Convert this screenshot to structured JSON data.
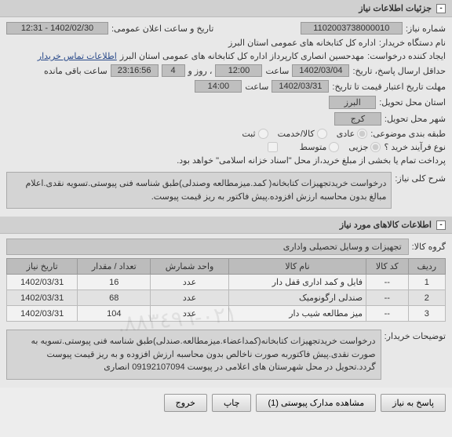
{
  "panel1": {
    "title": "جزئیات اطلاعات نیاز",
    "need_no_label": "شماره نیاز:",
    "need_no": "1102003738000010",
    "announce_label": "تاریخ و ساعت اعلان عمومی:",
    "announce": "1402/02/30 - 12:31",
    "buyer_label": "نام دستگاه خریدار:",
    "buyer": "اداره کل کتابخانه های عمومی استان البرز",
    "creator_label": "ایجاد کننده درخواست:",
    "creator": "مهدحسین انصاری کارپرداز اداره کل کتابخانه های عمومی استان البرز",
    "contact_link": "اطلاعات تماس خریدار",
    "deadline_label": "حداقل ارسال پاسخ، تاریخ:",
    "deadline_date": "1402/03/04",
    "deadline_time_label": "ساعت",
    "deadline_time": "12:00",
    "days_label": "، روز و",
    "days": "4",
    "time_remain": "23:16:56",
    "remain_label": "ساعت باقی مانده",
    "validity_label": "مهلت تاریخ اعتبار قیمت تا تاریخ:",
    "validity_date": "1402/03/31",
    "validity_time_label": "ساعت",
    "validity_time": "14:00",
    "province_label": "استان محل تحویل:",
    "province": "البرز",
    "city_label": "شهر محل تحویل:",
    "city": "کرج",
    "category_label": "طبقه بندی موضوعی:",
    "cat_items": [
      {
        "label": "عادی",
        "checked": true
      },
      {
        "label": "کالا/خدمت",
        "checked": false
      },
      {
        "label": "ثبت",
        "checked": false
      }
    ],
    "process_label": "نوع فرآیند خرید ؟",
    "proc_items": [
      {
        "label": "جزیی",
        "checked": true
      },
      {
        "label": "متوسط",
        "checked": false
      }
    ],
    "pay_note": "پرداخت تمام یا بخشی از مبلغ خرید،از محل \"اسناد خزانه اسلامی\" خواهد بود.",
    "desc_label": "شرح کلی نیاز:",
    "desc": "درخواست خریدتجهیزات کتابخانه( کمد.میزمطالعه وصندلی)طبق شناسه فنی پیوستی.تسویه نقدی.اعلام مبالغ بدون محاسبه ارزش افزوده.پیش فاکتور به ریز قیمت پیوست."
  },
  "panel2": {
    "title": "اطلاعات کالاهای مورد نیاز",
    "group_label": "گروه کالا:",
    "group": "تجهیزات و وسایل تحصیلی واداری",
    "columns": [
      "ردیف",
      "کد کالا",
      "نام کالا",
      "واحد شمارش",
      "تعداد / مقدار",
      "تاریخ نیاز"
    ],
    "rows": [
      [
        "1",
        "--",
        "فایل و کمد اداری قفل دار",
        "عدد",
        "16",
        "1402/03/31"
      ],
      [
        "2",
        "--",
        "صندلی ارگونومیک",
        "عدد",
        "68",
        "1402/03/31"
      ],
      [
        "3",
        "--",
        "میز مطالعه شیب دار",
        "عدد",
        "104",
        "1402/03/31"
      ]
    ],
    "buyer_note_label": "توضیحات خریدار:",
    "buyer_note": "درخواست خریدتجهیزات کتابخانه(کمداعضاء.میزمطالعه.صندلی)طبق شناسه فنی پیوستی.تسویه به صورت نقدی.پیش فاکتوربه صورت ناخالص بدون محاسبه ارزش افزوده و به ریز قیمت پیوست گردد.تحویل در محل شهرستان های اعلامی در پیوست 09192107094 انصاری"
  },
  "buttons": {
    "reply": "پاسخ به نیاز",
    "attach": "مشاهده مدارک پیوستی (1)",
    "print": "چاپ",
    "close": "خروج"
  },
  "watermark": ".٠٢١-٨٨٣٤٩٦"
}
